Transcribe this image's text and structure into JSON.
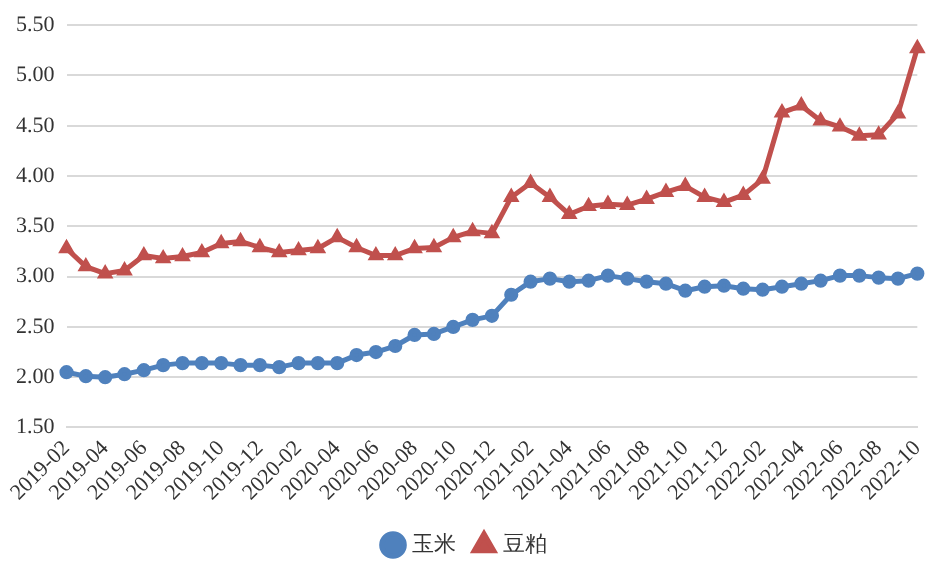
{
  "chart_data": {
    "type": "line",
    "categories": [
      "2019-02",
      null,
      "2019-04",
      null,
      "2019-06",
      null,
      "2019-08",
      null,
      "2019-10",
      null,
      "2019-12",
      null,
      "2020-02",
      null,
      "2020-04",
      null,
      "2020-06",
      null,
      "2020-08",
      null,
      "2020-10",
      null,
      "2020-12",
      null,
      "2021-02",
      null,
      "2021-04",
      null,
      "2021-06",
      null,
      "2021-08",
      null,
      "2021-10",
      null,
      "2021-12",
      null,
      "2022-02",
      null,
      "2022-04",
      null,
      "2022-06",
      null,
      "2022-08",
      null,
      "2022-10"
    ],
    "series": [
      {
        "name": "玉米",
        "color": "#4f81bd",
        "marker": "circle",
        "values": [
          2.05,
          2.01,
          2.0,
          2.03,
          2.07,
          2.12,
          2.14,
          2.14,
          2.14,
          2.12,
          2.12,
          2.1,
          2.14,
          2.14,
          2.14,
          2.22,
          2.25,
          2.31,
          2.42,
          2.43,
          2.5,
          2.57,
          2.61,
          2.82,
          2.95,
          2.98,
          2.95,
          2.96,
          3.01,
          2.98,
          2.95,
          2.93,
          2.86,
          2.9,
          2.91,
          2.88,
          2.87,
          2.9,
          2.93,
          2.96,
          3.01,
          3.01,
          2.99,
          2.98,
          3.03
        ]
      },
      {
        "name": "豆粕",
        "color": "#c0504d",
        "marker": "triangle",
        "values": [
          3.28,
          3.1,
          3.03,
          3.06,
          3.21,
          3.18,
          3.2,
          3.24,
          3.33,
          3.35,
          3.29,
          3.24,
          3.26,
          3.28,
          3.39,
          3.29,
          3.21,
          3.21,
          3.28,
          3.29,
          3.39,
          3.45,
          3.43,
          3.79,
          3.93,
          3.79,
          3.62,
          3.7,
          3.72,
          3.71,
          3.77,
          3.84,
          3.9,
          3.79,
          3.74,
          3.81,
          3.97,
          4.63,
          4.7,
          4.55,
          4.49,
          4.4,
          4.41,
          4.62,
          5.27
        ]
      }
    ],
    "ylim": [
      1.5,
      5.5
    ],
    "yticks": [
      {
        "value": 1.5,
        "label": "1.50"
      },
      {
        "value": 2,
        "label": "2.00"
      },
      {
        "value": 2.5,
        "label": "2.50"
      },
      {
        "value": 3,
        "label": "3.00"
      },
      {
        "value": 3.5,
        "label": "3.50"
      },
      {
        "value": 4,
        "label": "4.00"
      },
      {
        "value": 4.5,
        "label": "4.50"
      },
      {
        "value": 5,
        "label": "5.00"
      },
      {
        "value": 5.5,
        "label": "5.50"
      }
    ],
    "grid": "y",
    "legend": "bottom",
    "line_style": "solid"
  }
}
